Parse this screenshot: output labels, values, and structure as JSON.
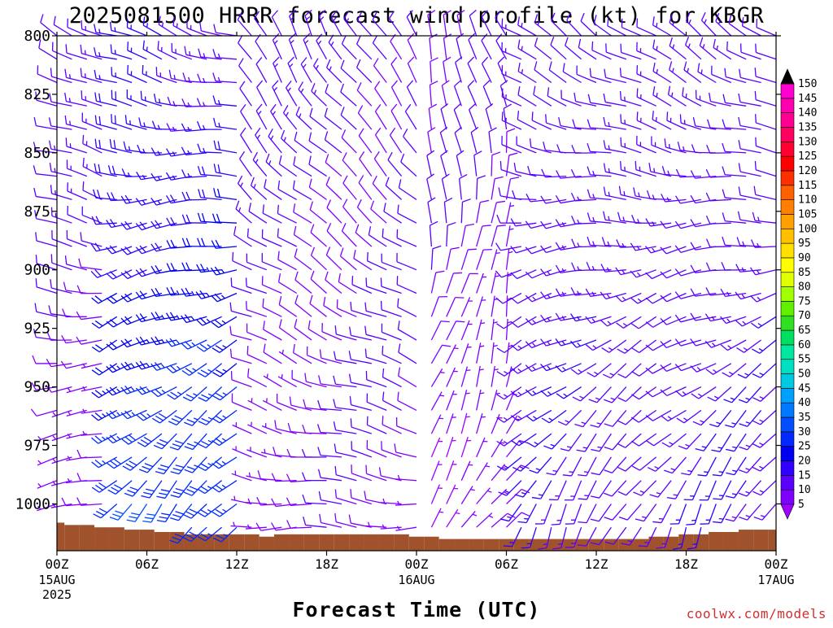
{
  "chart_data": {
    "type": "wind_barb_time_height",
    "title": "2025081500 HRRR forecast wind profile (kt) for KBGR",
    "xlabel": "Forecast Time (UTC)",
    "credit": "coolwx.com/models",
    "y_axis": {
      "label": "",
      "range": [
        800,
        1020
      ],
      "ticks": [
        800,
        825,
        850,
        875,
        900,
        925,
        950,
        975,
        1000
      ],
      "inverted": true
    },
    "x_axis": {
      "range_hours": [
        0,
        48
      ],
      "ticks": [
        {
          "hour": 0,
          "label": "00Z",
          "sub1": "15AUG",
          "sub2": "2025"
        },
        {
          "hour": 6,
          "label": "06Z",
          "sub1": "",
          "sub2": ""
        },
        {
          "hour": 12,
          "label": "12Z",
          "sub1": "",
          "sub2": ""
        },
        {
          "hour": 18,
          "label": "18Z",
          "sub1": "",
          "sub2": ""
        },
        {
          "hour": 24,
          "label": "00Z",
          "sub1": "16AUG",
          "sub2": ""
        },
        {
          "hour": 30,
          "label": "06Z",
          "sub1": "",
          "sub2": ""
        },
        {
          "hour": 36,
          "label": "12Z",
          "sub1": "",
          "sub2": ""
        },
        {
          "hour": 42,
          "label": "18Z",
          "sub1": "",
          "sub2": ""
        },
        {
          "hour": 48,
          "label": "00Z",
          "sub1": "17AUG",
          "sub2": ""
        }
      ]
    },
    "surface_pressure": [
      1008,
      1009,
      1009,
      1010,
      1010,
      1011,
      1011,
      1012,
      1012,
      1013,
      1013,
      1013,
      1013,
      1013,
      1014,
      1013,
      1013,
      1013,
      1013,
      1013,
      1013,
      1013,
      1013,
      1013,
      1014,
      1014,
      1015,
      1015,
      1015,
      1015,
      1015,
      1015,
      1015,
      1015,
      1015,
      1015,
      1015,
      1015,
      1015,
      1015,
      1014,
      1014,
      1013,
      1013,
      1012,
      1012,
      1011,
      1011,
      1011
    ],
    "surface_color": "#a0522d",
    "barb_levels": [
      800,
      810,
      820,
      830,
      840,
      850,
      860,
      870,
      880,
      890,
      900,
      910,
      920,
      930,
      940,
      950,
      960,
      970,
      980,
      990,
      1000,
      1010
    ],
    "wind_note": "Barbs: direction from which wind blows (deg), speed in kt; colored by speed.",
    "wind_regimes": [
      {
        "hours": [
          0,
          3
        ],
        "dir_upper": 300,
        "dir_lower": 250,
        "speed_upper": 12,
        "speed_lower": 8
      },
      {
        "hours": [
          4,
          12
        ],
        "dir_upper": 290,
        "dir_lower": 215,
        "speed_upper": 14,
        "speed_lower": 30
      },
      {
        "hours": [
          13,
          24
        ],
        "dir_upper": 330,
        "dir_lower": 270,
        "speed_upper": 12,
        "speed_lower": 8
      },
      {
        "hours": [
          25,
          30
        ],
        "dir_upper": 340,
        "dir_lower": 40,
        "speed_upper": 10,
        "speed_lower": 6
      },
      {
        "hours": [
          31,
          48
        ],
        "dir_upper": 305,
        "dir_lower": 200,
        "speed_upper": 12,
        "speed_lower": 14
      }
    ],
    "colorbar": {
      "values": [
        5,
        10,
        15,
        20,
        25,
        30,
        35,
        40,
        45,
        50,
        55,
        60,
        65,
        70,
        75,
        80,
        85,
        90,
        95,
        100,
        105,
        110,
        115,
        120,
        125,
        130,
        135,
        140,
        145,
        150
      ],
      "labels": [
        "5",
        "10",
        "15",
        "20",
        "25",
        "30",
        "35",
        "40",
        "45",
        "50",
        "55",
        "60",
        "65",
        "70",
        "75",
        "80",
        "85",
        "90",
        "95",
        "100",
        "105",
        "110",
        "115",
        "120",
        "125",
        "130",
        "135",
        "140",
        "145",
        "150"
      ],
      "colors": [
        "#8000ff",
        "#5a00ff",
        "#3000ff",
        "#0000f0",
        "#0028ff",
        "#0050ff",
        "#0078ff",
        "#00a0ff",
        "#00c8e0",
        "#00e0c0",
        "#00e8a0",
        "#00e060",
        "#30e020",
        "#60f000",
        "#a0ff00",
        "#e0ff00",
        "#ffff00",
        "#ffe000",
        "#ffc000",
        "#ffa000",
        "#ff8000",
        "#ff6000",
        "#ff3000",
        "#ff0000",
        "#ff0030",
        "#ff0060",
        "#ff0090",
        "#ff00b0",
        "#ff00d0",
        "#ff00ff"
      ],
      "under_color": "#a000ff",
      "over_color": "#000000"
    }
  }
}
